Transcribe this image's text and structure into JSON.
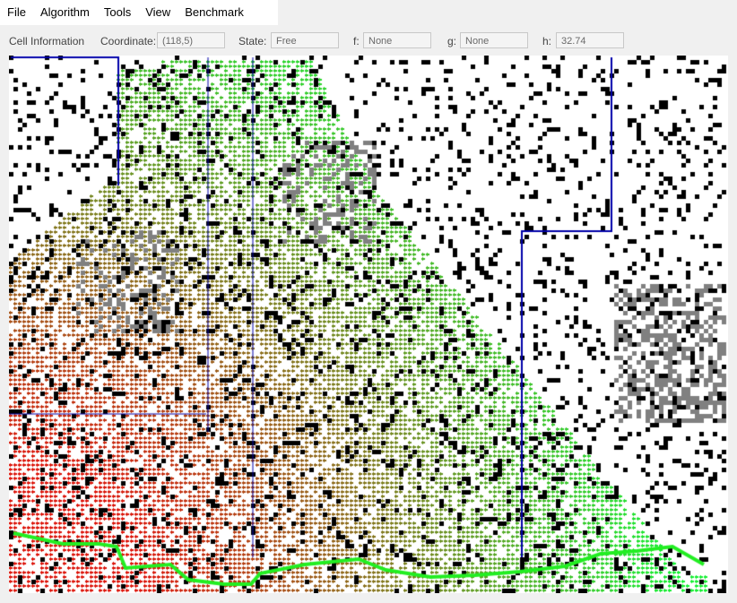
{
  "menu": {
    "items": [
      "File",
      "Algorithm",
      "Tools",
      "View",
      "Benchmark"
    ]
  },
  "cell_info": {
    "section_label": "Cell Information",
    "coordinate_label": "Coordinate:",
    "coordinate_value": "(118,5)",
    "state_label": "State:",
    "state_value": "Free",
    "f_label": "f:",
    "f_value": "None",
    "g_label": "g:",
    "g_value": "None",
    "h_label": "h:",
    "h_value": "32.74"
  },
  "colors": {
    "obstacle": "#000000",
    "rough_terrain": "#808080",
    "free": "#ffffff",
    "path": "#22ee22",
    "region_border": "#0000aa",
    "expanded_near": "#00ff33",
    "expanded_far": "#dd0000"
  }
}
